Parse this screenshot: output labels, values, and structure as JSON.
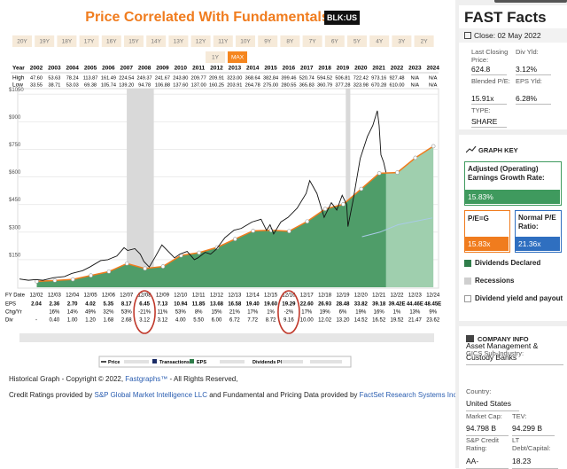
{
  "header": {
    "title": "Price Correlated With Fundamentals",
    "ticker": "BLK:US",
    "ranges": [
      "20Y",
      "19Y",
      "18Y",
      "17Y",
      "16Y",
      "15Y",
      "14Y",
      "13Y",
      "12Y",
      "11Y",
      "10Y",
      "9Y",
      "8Y",
      "7Y",
      "6Y",
      "5Y",
      "4Y",
      "3Y",
      "2Y",
      "1Y",
      "MAX"
    ],
    "selected_range": "MAX"
  },
  "year_table": {
    "labels": [
      "Year",
      "High",
      "Low"
    ],
    "years": [
      "2002",
      "2003",
      "2004",
      "2005",
      "2006",
      "2007",
      "2008",
      "2009",
      "2010",
      "2011",
      "2012",
      "2013",
      "2014",
      "2015",
      "2016",
      "2017",
      "2018",
      "2019",
      "2020",
      "2021",
      "2022",
      "2023",
      "2024"
    ],
    "high": [
      "47.60",
      "53.63",
      "78.24",
      "113.87",
      "161.49",
      "224.54",
      "249.37",
      "241.67",
      "243.80",
      "209.77",
      "209.91",
      "323.00",
      "368.64",
      "382.84",
      "399.46",
      "520.74",
      "594.52",
      "506.81",
      "722.42",
      "973.16",
      "927.48",
      "N/A",
      "N/A"
    ],
    "low": [
      "33.55",
      "38.71",
      "53.03",
      "69.38",
      "105.74",
      "139.20",
      "94.78",
      "106.88",
      "137.60",
      "137.00",
      "160.25",
      "203.91",
      "264.78",
      "275.00",
      "280.55",
      "365.83",
      "360.79",
      "377.28",
      "323.98",
      "670.28",
      "610.00",
      "N/A",
      "N/A"
    ]
  },
  "chart_data": {
    "type": "line",
    "xlim": [
      2002.0,
      2025.0
    ],
    "ylim": [
      0,
      1080
    ],
    "yticks": [
      {
        "value": 1050,
        "label": "$1050"
      },
      {
        "value": 900,
        "label": "$900"
      },
      {
        "value": 750,
        "label": "$750"
      },
      {
        "value": 600,
        "label": "$600"
      },
      {
        "value": 450,
        "label": "$450"
      },
      {
        "value": 300,
        "label": "$300"
      },
      {
        "value": 150,
        "label": "$150"
      }
    ],
    "grid": true,
    "recessions": [
      [
        2007.95,
        2009.45
      ],
      [
        2020.1,
        2020.35
      ]
    ],
    "series": [
      {
        "name": "Price",
        "color": "#111111",
        "x": [
          2002.0,
          2002.5,
          2002.9,
          2003.3,
          2003.9,
          2004.5,
          2004.9,
          2005.5,
          2005.9,
          2006.5,
          2006.9,
          2007.4,
          2007.8,
          2008.0,
          2008.4,
          2008.7,
          2008.9,
          2009.2,
          2009.5,
          2009.9,
          2010.3,
          2010.6,
          2010.9,
          2011.3,
          2011.7,
          2011.9,
          2012.3,
          2012.6,
          2012.9,
          2013.4,
          2013.9,
          2014.3,
          2014.9,
          2015.4,
          2015.7,
          2015.9,
          2016.1,
          2016.5,
          2016.9,
          2017.4,
          2017.9,
          2018.1,
          2018.5,
          2018.9,
          2019.3,
          2019.6,
          2019.9,
          2020.15,
          2020.22,
          2020.5,
          2020.9,
          2021.3,
          2021.6,
          2021.85,
          2021.95,
          2022.05,
          2022.2,
          2022.33
        ],
        "values": [
          45,
          38,
          42,
          38,
          52,
          58,
          75,
          90,
          110,
          145,
          150,
          170,
          215,
          200,
          210,
          180,
          140,
          110,
          160,
          230,
          190,
          160,
          180,
          195,
          150,
          160,
          190,
          180,
          205,
          270,
          310,
          320,
          355,
          370,
          310,
          340,
          290,
          355,
          380,
          430,
          510,
          580,
          510,
          380,
          460,
          420,
          500,
          450,
          330,
          470,
          700,
          820,
          880,
          960,
          880,
          720,
          680,
          625
        ]
      },
      {
        "name": "EPS",
        "color": "#f07c1e",
        "x": [
          2002.96,
          2003.96,
          2004.96,
          2005.96,
          2006.96,
          2007.96,
          2008.96,
          2009.96,
          2010.96,
          2011.96,
          2012.96,
          2013.96,
          2014.96,
          2015.96,
          2016.96,
          2017.96,
          2018.96,
          2019.96,
          2020.96,
          2021.96,
          2022.96,
          2023.96,
          2024.96
        ],
        "values": [
          32,
          37,
          43,
          64,
          85,
          129,
          102,
          113,
          173,
          188,
          217,
          262,
          307,
          310,
          305,
          358,
          426,
          451,
          535,
          620,
          624,
          704,
          767
        ]
      },
      {
        "color": "#a9cbe8",
        "x": [
          2021.0,
          2022.0,
          2023.0,
          2024.9
        ],
        "values": [
          275,
          300,
          340,
          377
        ]
      }
    ]
  },
  "fundamentals_table": {
    "labels": [
      "FY Date",
      "EPS",
      "Chg/Yr",
      "Div"
    ],
    "fy_dates": [
      "12/02",
      "12/03",
      "12/04",
      "12/05",
      "12/06",
      "12/07",
      "12/08",
      "12/09",
      "12/10",
      "12/11",
      "12/12",
      "12/13",
      "12/14",
      "12/15",
      "12/16",
      "12/17",
      "12/18",
      "12/19",
      "12/20",
      "12/21",
      "12/22",
      "12/23",
      "12/24"
    ],
    "eps": [
      "2.04",
      "2.36",
      "2.70",
      "4.02",
      "5.35",
      "8.17",
      "6.45",
      "7.13",
      "10.94",
      "11.85",
      "13.68",
      "16.58",
      "19.40",
      "19.60",
      "19.29",
      "22.60",
      "26.93",
      "28.48",
      "33.82",
      "39.18",
      "39.42E",
      "44.46E",
      "48.45E"
    ],
    "chg": [
      null,
      "16%",
      "14%",
      "49%",
      "32%",
      "53%",
      "-21%",
      "11%",
      "53%",
      "8%",
      "15%",
      "21%",
      "17%",
      "1%",
      "-2%",
      "17%",
      "19%",
      "6%",
      "19%",
      "16%",
      "1%",
      "13%",
      "9%"
    ],
    "div": [
      "-",
      "0.40",
      "1.00",
      "1.20",
      "1.68",
      "2.68",
      "3.12",
      "3.12",
      "4.00",
      "5.50",
      "6.00",
      "6.72",
      "7.72",
      "8.72",
      "9.16",
      "10.00",
      "12.02",
      "13.20",
      "14.52",
      "16.52",
      "19.52",
      "21.47",
      "23.62"
    ]
  },
  "legend_row": [
    "Transactions",
    "Dividends POR"
  ],
  "footer": {
    "copyright": [
      {
        "text": "Historical Graph - Copyright © 2022, "
      },
      {
        "text": "Fastgraphs™",
        "link": true
      },
      {
        "text": " - All Rights Reserved,"
      }
    ],
    "credits": [
      {
        "text": "Credit Ratings provided by "
      },
      {
        "text": "S&P Global Market Intelligence LLC",
        "link": true
      },
      {
        "text": " and Fundamental and Pricing Data provided by "
      },
      {
        "text": "FactSet Research Systems Inc.",
        "link": true
      }
    ]
  },
  "fast_facts": {
    "title": "FAST Facts",
    "close": "Close: 02 May 2022",
    "metrics": [
      {
        "label": "Last Closing Price:",
        "value": "624.8"
      },
      {
        "label": "Div Yld:",
        "value": "3.12%"
      },
      {
        "label": "Blended P/E:",
        "value": "15.91x"
      },
      {
        "label": "EPS Yld:",
        "value": "6.28%"
      }
    ],
    "type_label": "TYPE:",
    "type_value": "SHARE"
  },
  "graph_key": {
    "title": "GRAPH KEY",
    "growth_label": "Adjusted (Operating) Earnings Growth Rate:",
    "growth_value": "15.83%",
    "peg_label": "P/E=G",
    "peg_value": "15.83x",
    "normal_label": "Normal P/E Ratio:",
    "normal_value": "21.36x",
    "items": [
      "Dividends Declared",
      "Recessions",
      "Dividend yield and payout"
    ]
  },
  "company_info": {
    "title": "COMPANY INFO",
    "fields": [
      {
        "label": "GICS Sub-Industry:",
        "value": "Asset Management & Custody Banks"
      },
      {
        "label": "Country:",
        "value": "United States"
      },
      {
        "label": "Market Cap:",
        "value": "94.798 B"
      },
      {
        "label": "TEV:",
        "value": "94.299 B"
      },
      {
        "label": "S&P Credit Rating:",
        "value": "AA-"
      },
      {
        "label": "LT Debt/Capital:",
        "value": "18.23"
      }
    ]
  }
}
